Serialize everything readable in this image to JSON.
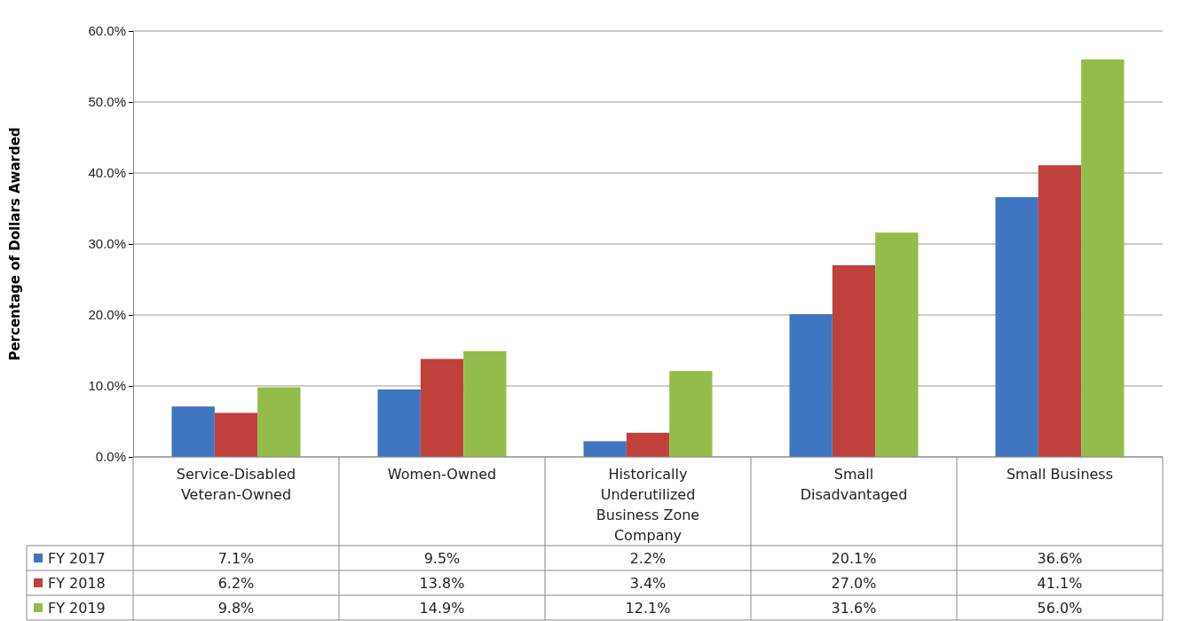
{
  "chart_data": {
    "type": "bar",
    "ylabel": "Percentage of Dollars Awarded",
    "categories": [
      "Service-Disabled Veteran-Owned",
      "Women-Owned",
      "Historically Underutilized Business Zone Company",
      "Small Disadvantaged",
      "Small Business"
    ],
    "series": [
      {
        "name": "FY 2017",
        "color": "#3f74c0",
        "values": [
          7.1,
          9.5,
          2.2,
          20.1,
          36.6
        ],
        "value_labels": [
          "7.1%",
          "9.5%",
          "2.2%",
          "20.1%",
          "36.6%"
        ]
      },
      {
        "name": "FY 2018",
        "color": "#c0413b",
        "values": [
          6.2,
          13.8,
          3.4,
          27.0,
          41.1
        ],
        "value_labels": [
          "6.2%",
          "13.8%",
          "3.4%",
          "27.0%",
          "41.1%"
        ]
      },
      {
        "name": "FY 2019",
        "color": "#94bc4a",
        "values": [
          9.8,
          14.9,
          12.1,
          31.6,
          56.0
        ],
        "value_labels": [
          "9.8%",
          "14.9%",
          "12.1%",
          "31.6%",
          "56.0%"
        ]
      }
    ],
    "ylim": [
      0,
      60
    ],
    "yticks": [
      {
        "value": 0,
        "label": "0.0%"
      },
      {
        "value": 10,
        "label": "10.0%"
      },
      {
        "value": 20,
        "label": "20.0%"
      },
      {
        "value": 30,
        "label": "30.0%"
      },
      {
        "value": 40,
        "label": "40.0%"
      },
      {
        "value": 50,
        "label": "50.0%"
      },
      {
        "value": 60,
        "label": "60.0%"
      }
    ],
    "grid": "y",
    "legend": "bottom"
  }
}
